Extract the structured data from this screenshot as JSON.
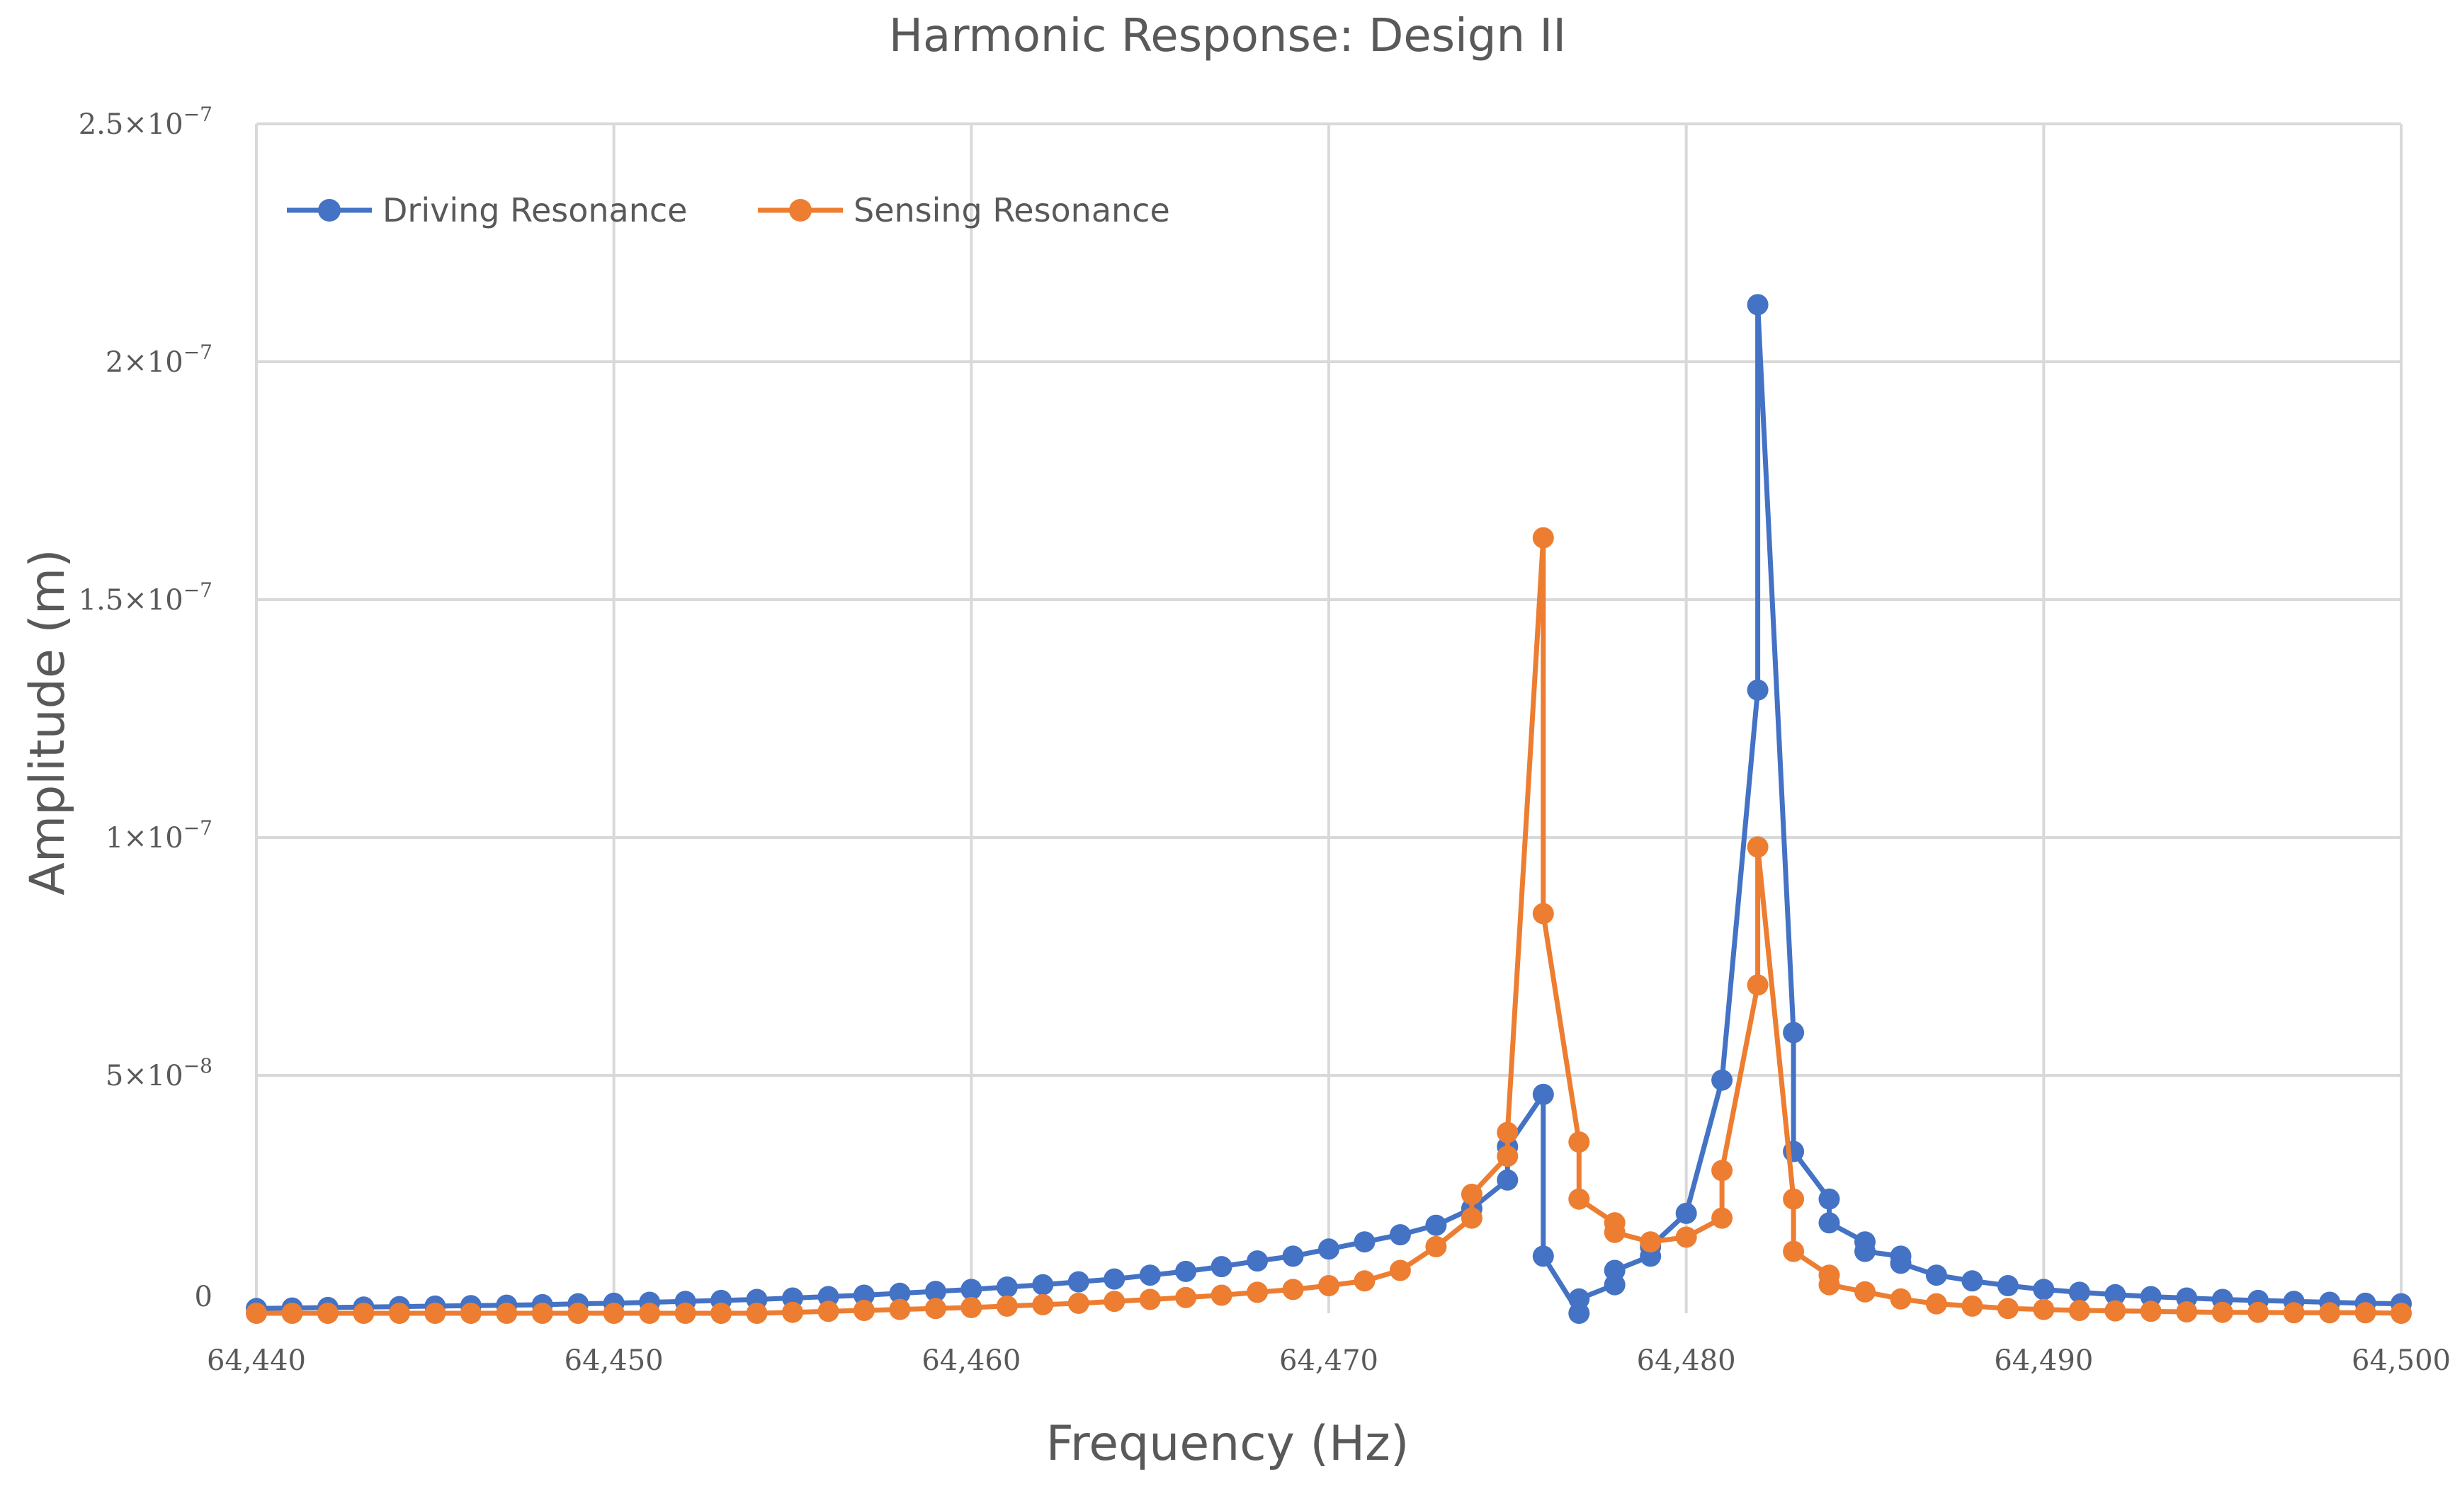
{
  "chart_data": {
    "type": "line",
    "title": "Harmonic Response: Design II",
    "xlabel": "Frequency (Hz)",
    "ylabel": "Amplitude (m)",
    "xlim": [
      64440,
      64500
    ],
    "ylim": [
      0,
      2.5e-07
    ],
    "x_ticks": [
      64440,
      64450,
      64460,
      64470,
      64480,
      64490,
      64500
    ],
    "x_tick_labels": [
      "64,440",
      "64,450",
      "64,460",
      "64,470",
      "64,480",
      "64,490",
      "64,500"
    ],
    "y_ticks": [
      0,
      5e-08,
      1e-07,
      1.5e-07,
      2e-07,
      2.5e-07
    ],
    "y_tick_labels": [
      {
        "mantissa": "0",
        "exponent": ""
      },
      {
        "mantissa": "5×10",
        "exponent": "−8"
      },
      {
        "mantissa": "1×10",
        "exponent": "−7"
      },
      {
        "mantissa": "1.5×10",
        "exponent": "−7"
      },
      {
        "mantissa": "2×10",
        "exponent": "−7"
      },
      {
        "mantissa": "2.5×10",
        "exponent": "−7"
      }
    ],
    "grid": true,
    "legend_position": "top-left",
    "series": [
      {
        "name": "Driving Resonance",
        "color": "#4472c4",
        "points": [
          [
            64440,
            1e-09
          ],
          [
            64441,
            1.1e-09
          ],
          [
            64442,
            1.2e-09
          ],
          [
            64443,
            1.3e-09
          ],
          [
            64444,
            1.4e-09
          ],
          [
            64445,
            1.5e-09
          ],
          [
            64446,
            1.6e-09
          ],
          [
            64447,
            1.7e-09
          ],
          [
            64448,
            1.8e-09
          ],
          [
            64449,
            2e-09
          ],
          [
            64450,
            2.1e-09
          ],
          [
            64451,
            2.3e-09
          ],
          [
            64452,
            2.5e-09
          ],
          [
            64453,
            2.7e-09
          ],
          [
            64454,
            2.9e-09
          ],
          [
            64455,
            3.2e-09
          ],
          [
            64456,
            3.5e-09
          ],
          [
            64457,
            3.8e-09
          ],
          [
            64458,
            4.2e-09
          ],
          [
            64459,
            4.6e-09
          ],
          [
            64460,
            5e-09
          ],
          [
            64461,
            5.5e-09
          ],
          [
            64462,
            6e-09
          ],
          [
            64463,
            6.6e-09
          ],
          [
            64464,
            7.2e-09
          ],
          [
            64465,
            8e-09
          ],
          [
            64466,
            8.8e-09
          ],
          [
            64467,
            9.8e-09
          ],
          [
            64468,
            1.1e-08
          ],
          [
            64469,
            1.2e-08
          ],
          [
            64470,
            1.35e-08
          ],
          [
            64471,
            1.5e-08
          ],
          [
            64472,
            1.65e-08
          ],
          [
            64473,
            1.85e-08
          ],
          [
            64474,
            2.2e-08
          ],
          [
            64475,
            2.8e-08
          ],
          [
            64475,
            3.5e-08
          ],
          [
            64476,
            4.6e-08
          ],
          [
            64476,
            1.2e-08
          ],
          [
            64477,
            0
          ],
          [
            64477,
            3e-09
          ],
          [
            64478,
            6e-09
          ],
          [
            64478,
            9e-09
          ],
          [
            64479,
            1.2e-08
          ],
          [
            64479,
            1.4e-08
          ],
          [
            64480,
            2.1e-08
          ],
          [
            64481,
            4.9e-08
          ],
          [
            64482,
            1.31e-07
          ],
          [
            64482,
            2.12e-07
          ],
          [
            64483,
            5.9e-08
          ],
          [
            64483,
            3.4e-08
          ],
          [
            64484,
            2.4e-08
          ],
          [
            64484,
            1.9e-08
          ],
          [
            64485,
            1.5e-08
          ],
          [
            64485,
            1.3e-08
          ],
          [
            64486,
            1.2e-08
          ],
          [
            64486,
            1.05e-08
          ],
          [
            64487,
            8e-09
          ],
          [
            64488,
            6.8e-09
          ],
          [
            64489,
            5.8e-09
          ],
          [
            64490,
            5e-09
          ],
          [
            64491,
            4.4e-09
          ],
          [
            64492,
            3.9e-09
          ],
          [
            64493,
            3.5e-09
          ],
          [
            64494,
            3.2e-09
          ],
          [
            64495,
            2.9e-09
          ],
          [
            64496,
            2.7e-09
          ],
          [
            64497,
            2.5e-09
          ],
          [
            64498,
            2.3e-09
          ],
          [
            64499,
            2.1e-09
          ],
          [
            64500,
            2e-09
          ]
        ]
      },
      {
        "name": "Sensing Resonance",
        "color": "#ed7d31",
        "points": [
          [
            64440,
            0
          ],
          [
            64441,
            0
          ],
          [
            64442,
            0
          ],
          [
            64443,
            0
          ],
          [
            64444,
            0
          ],
          [
            64445,
            0
          ],
          [
            64446,
            0
          ],
          [
            64447,
            0
          ],
          [
            64448,
            0
          ],
          [
            64449,
            0
          ],
          [
            64450,
            0
          ],
          [
            64451,
            0
          ],
          [
            64452,
            0
          ],
          [
            64453,
            0
          ],
          [
            64454,
            0
          ],
          [
            64455,
            2e-10
          ],
          [
            64456,
            4e-10
          ],
          [
            64457,
            6e-10
          ],
          [
            64458,
            8e-10
          ],
          [
            64459,
            1e-09
          ],
          [
            64460,
            1.2e-09
          ],
          [
            64461,
            1.5e-09
          ],
          [
            64462,
            1.8e-09
          ],
          [
            64463,
            2.1e-09
          ],
          [
            64464,
            2.5e-09
          ],
          [
            64465,
            2.9e-09
          ],
          [
            64466,
            3.3e-09
          ],
          [
            64467,
            3.8e-09
          ],
          [
            64468,
            4.4e-09
          ],
          [
            64469,
            5e-09
          ],
          [
            64470,
            5.8e-09
          ],
          [
            64471,
            6.8e-09
          ],
          [
            64472,
            9e-09
          ],
          [
            64473,
            1.4e-08
          ],
          [
            64474,
            2e-08
          ],
          [
            64474,
            2.5e-08
          ],
          [
            64475,
            3.3e-08
          ],
          [
            64475,
            3.8e-08
          ],
          [
            64476,
            1.63e-07
          ],
          [
            64476,
            8.4e-08
          ],
          [
            64477,
            3.6e-08
          ],
          [
            64477,
            2.4e-08
          ],
          [
            64478,
            1.9e-08
          ],
          [
            64478,
            1.7e-08
          ],
          [
            64479,
            1.5e-08
          ],
          [
            64480,
            1.6e-08
          ],
          [
            64481,
            2e-08
          ],
          [
            64481,
            3e-08
          ],
          [
            64482,
            6.9e-08
          ],
          [
            64482,
            9.8e-08
          ],
          [
            64483,
            2.4e-08
          ],
          [
            64483,
            1.3e-08
          ],
          [
            64484,
            8e-09
          ],
          [
            64484,
            6e-09
          ],
          [
            64485,
            4.5e-09
          ],
          [
            64486,
            3e-09
          ],
          [
            64487,
            2e-09
          ],
          [
            64488,
            1.5e-09
          ],
          [
            64489,
            1e-09
          ],
          [
            64490,
            8e-10
          ],
          [
            64491,
            6e-10
          ],
          [
            64492,
            5e-10
          ],
          [
            64493,
            4e-10
          ],
          [
            64494,
            3e-10
          ],
          [
            64495,
            2e-10
          ],
          [
            64496,
            2e-10
          ],
          [
            64497,
            1e-10
          ],
          [
            64498,
            1e-10
          ],
          [
            64499,
            1e-10
          ],
          [
            64500,
            0
          ]
        ]
      }
    ]
  }
}
